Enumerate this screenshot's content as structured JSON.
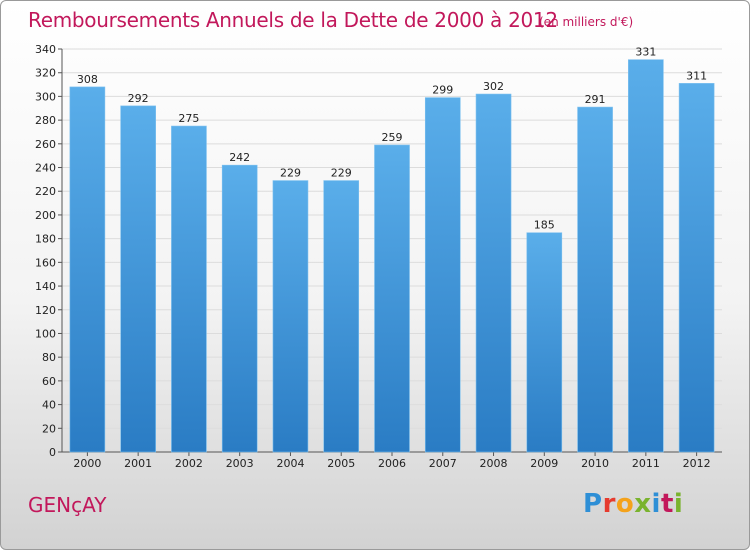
{
  "header": {
    "title": "Remboursements Annuels de la Dette de 2000 à 2012",
    "unit": "(en milliers d'€)"
  },
  "footer": {
    "commune": "GENçAY",
    "logo_text": "Proxiti"
  },
  "colors": {
    "bar_top": "#5aaeea",
    "bar_bottom": "#2a7cc4",
    "title": "#c2185b",
    "grid": "#dcdcdc"
  },
  "chart_data": {
    "type": "bar",
    "title": "Remboursements Annuels de la Dette de 2000 à 2012",
    "subtitle": "(en milliers d'€)",
    "categories": [
      "2000",
      "2001",
      "2002",
      "2003",
      "2004",
      "2005",
      "2006",
      "2007",
      "2008",
      "2009",
      "2010",
      "2011",
      "2012"
    ],
    "values": [
      308,
      292,
      275,
      242,
      229,
      229,
      259,
      299,
      302,
      185,
      291,
      331,
      311
    ],
    "data_labels": [
      "308",
      "292",
      "275",
      "242",
      "229",
      "229",
      "259",
      "299",
      "302",
      "185",
      "291",
      "331",
      "311"
    ],
    "yticks": [
      0,
      20,
      40,
      60,
      80,
      100,
      120,
      140,
      160,
      180,
      200,
      220,
      240,
      260,
      280,
      300,
      320,
      340
    ],
    "ylim": [
      0,
      340
    ],
    "grid": true,
    "legend": "none"
  }
}
